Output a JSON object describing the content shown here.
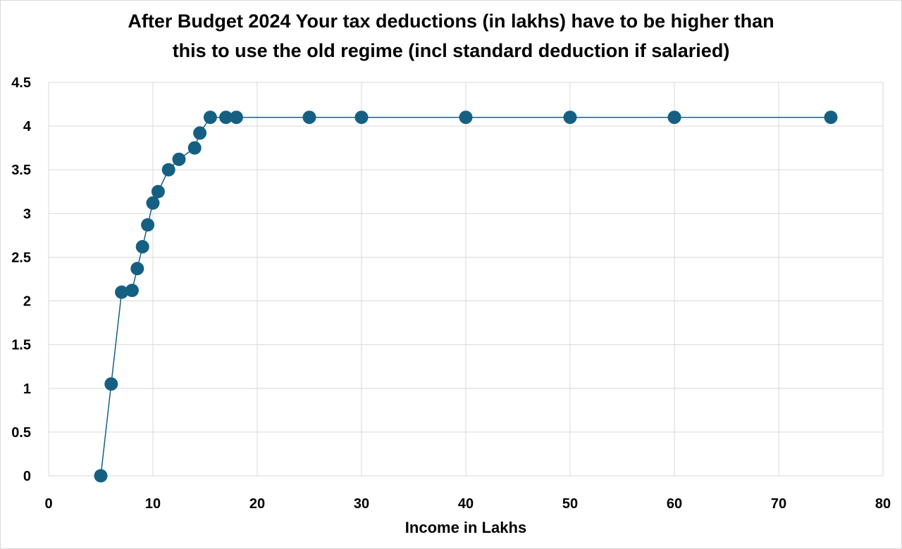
{
  "chart_data": {
    "type": "line",
    "title_line1": "After Budget 2024 Your tax deductions (in lakhs) have to be higher than",
    "title_line2": "this to use the old regime (incl standard deduction if salaried)",
    "xlabel": "Income in Lakhs",
    "ylabel": "",
    "xlim": [
      0,
      80
    ],
    "ylim": [
      0,
      4.5
    ],
    "xticks": [
      0,
      10,
      20,
      30,
      40,
      50,
      60,
      70,
      80
    ],
    "yticks": [
      0,
      0.5,
      1,
      1.5,
      2,
      2.5,
      3,
      3.5,
      4,
      4.5
    ],
    "grid": true,
    "markers": true,
    "color": "#156082",
    "series": [
      {
        "x": [
          5,
          6,
          7,
          8,
          8.5,
          9,
          9.5,
          10,
          10.5,
          11.5,
          12.5,
          14,
          14.5,
          15.5,
          17,
          18,
          25,
          30,
          40,
          50,
          60,
          75
        ],
        "y": [
          0,
          1.05,
          2.1,
          2.12,
          2.37,
          2.62,
          2.87,
          3.12,
          3.25,
          3.5,
          3.62,
          3.75,
          3.92,
          4.1,
          4.1,
          4.1,
          4.1,
          4.1,
          4.1,
          4.1,
          4.1,
          4.1
        ]
      }
    ]
  }
}
